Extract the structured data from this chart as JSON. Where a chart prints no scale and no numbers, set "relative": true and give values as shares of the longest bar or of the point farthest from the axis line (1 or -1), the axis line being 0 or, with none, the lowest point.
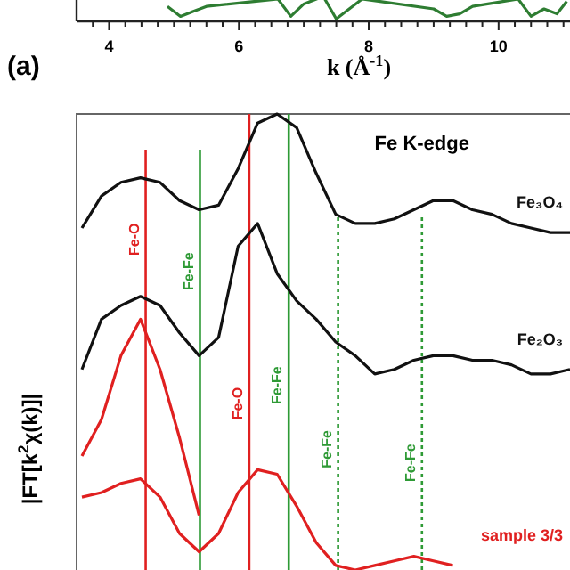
{
  "chart_data": [
    {
      "type": "line",
      "relative": true,
      "xlabel": "k (Å$^{-1}$)",
      "xlim": [
        3.5,
        11.1
      ],
      "xticks": [
        {
          "value": 3.75,
          "label": null
        },
        4,
        {
          "value": 4.25,
          "label": null
        },
        {
          "value": 4.5,
          "label": null
        },
        {
          "value": 4.75,
          "label": null
        },
        {
          "value": 5,
          "label": null
        },
        {
          "value": 5.25,
          "label": null
        },
        {
          "value": 5.5,
          "label": null
        },
        {
          "value": 5.75,
          "label": null
        },
        6,
        {
          "value": 6.25,
          "label": null
        },
        {
          "value": 6.5,
          "label": null
        },
        {
          "value": 6.75,
          "label": null
        },
        {
          "value": 7,
          "label": null
        },
        {
          "value": 7.25,
          "label": null
        },
        {
          "value": 7.5,
          "label": null
        },
        {
          "value": 7.75,
          "label": null
        },
        8,
        {
          "value": 8.25,
          "label": null
        },
        {
          "value": 8.5,
          "label": null
        },
        {
          "value": 8.75,
          "label": null
        },
        {
          "value": 9,
          "label": null
        },
        {
          "value": 9.25,
          "label": null
        },
        {
          "value": 9.5,
          "label": null
        },
        {
          "value": 9.75,
          "label": null
        },
        10,
        {
          "value": 10.25,
          "label": null
        },
        {
          "value": 10.5,
          "label": null
        },
        {
          "value": 10.75,
          "label": null
        },
        {
          "value": 11,
          "label": null
        }
      ],
      "tick_labels": "x",
      "series": [
        {
          "color": "#2e7d32",
          "x": [
            4.9,
            5.1,
            5.3,
            5.5,
            6.6,
            6.8,
            7.0,
            7.3,
            7.5,
            7.7,
            7.9,
            9.0,
            9.2,
            9.4,
            9.6,
            10.3,
            10.5,
            10.7,
            10.9,
            11.05
          ],
          "values": [
            0.6,
            0.2,
            0.4,
            0.6,
            0.9,
            0.2,
            0.7,
            1.0,
            0.1,
            0.5,
            0.9,
            0.5,
            0.2,
            0.3,
            0.6,
            0.9,
            0.2,
            0.5,
            0.3,
            0.8
          ]
        }
      ]
    },
    {
      "type": "line",
      "relative": true,
      "title": "Fe K-edge",
      "ylabel": "|FT[k$^{2}$χ(k)]|",
      "annotations": [
        "(a)",
        "Fe-O",
        "Fe-O",
        "Fe-Fe",
        "Fe-Fe",
        "Fe-Fe",
        "Fe-Fe"
      ],
      "tick_labels": false,
      "categories": [
        null,
        null,
        null,
        null,
        null,
        null,
        null,
        null,
        null,
        null,
        null,
        null,
        null,
        null,
        null,
        null,
        null,
        null,
        null,
        null,
        null,
        null,
        null,
        null,
        null,
        null
      ],
      "series": [
        {
          "name": "Fe₃O₄",
          "color": "#111111",
          "values": [
            0.75,
            0.82,
            0.85,
            0.86,
            0.85,
            0.81,
            0.79,
            0.8,
            0.88,
            0.98,
            1.0,
            0.97,
            0.87,
            0.78,
            0.76,
            0.76,
            0.77,
            0.79,
            0.81,
            0.81,
            0.79,
            0.78,
            0.76,
            0.75,
            0.74,
            0.74
          ]
        },
        {
          "name": "Fe₂O₃",
          "color": "#111111",
          "values": [
            0.44,
            0.55,
            0.58,
            0.6,
            0.58,
            0.52,
            0.47,
            0.51,
            0.71,
            0.76,
            0.65,
            0.59,
            0.55,
            0.5,
            0.47,
            0.43,
            0.44,
            0.46,
            0.47,
            0.47,
            0.46,
            0.46,
            0.45,
            0.43,
            0.43,
            0.44
          ]
        },
        {
          "color": "#e02020",
          "values": [
            0.25,
            0.33,
            0.47,
            0.55,
            0.44,
            0.29,
            0.12,
            null,
            null,
            null,
            null,
            null,
            null,
            null,
            null,
            null,
            null,
            null,
            null,
            null,
            null,
            null,
            null,
            null,
            null,
            null
          ]
        },
        {
          "name": "sample 3/3",
          "color": "#e02020",
          "values": [
            0.16,
            0.17,
            0.19,
            0.2,
            0.16,
            0.08,
            0.04,
            0.08,
            0.17,
            0.22,
            0.21,
            0.14,
            0.06,
            0.01,
            0.0,
            0.01,
            0.02,
            0.03,
            0.02,
            0.01,
            null,
            null,
            null,
            null,
            null,
            null
          ]
        }
      ]
    }
  ]
}
